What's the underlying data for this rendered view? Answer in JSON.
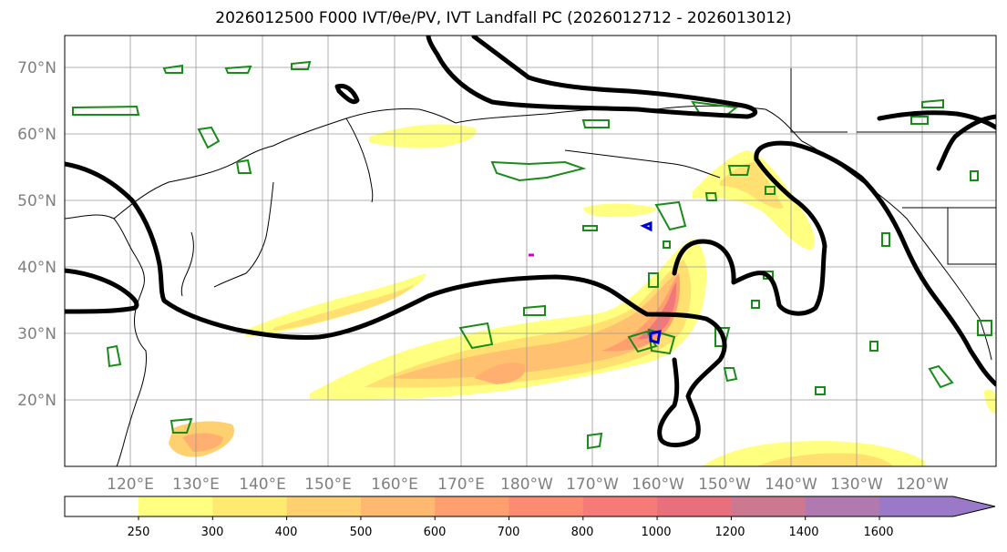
{
  "title": "2026012500 F000 IVT/θe/PV, IVT Landfall PC (2026012712 - 2026013012)",
  "map": {
    "lon_labels": [
      "120°E",
      "130°E",
      "140°E",
      "150°E",
      "160°E",
      "170°E",
      "180°W",
      "170°W",
      "160°W",
      "150°W",
      "140°W",
      "130°W",
      "120°W"
    ],
    "lat_labels": [
      "70°N",
      "60°N",
      "50°N",
      "40°N",
      "30°N",
      "20°N"
    ]
  },
  "colorbar": {
    "ticks": [
      "250",
      "300",
      "400",
      "500",
      "600",
      "700",
      "800",
      "1000",
      "1200",
      "1400",
      "1600"
    ],
    "colors": [
      "#ffff80",
      "#ffea70",
      "#ffd070",
      "#ffb870",
      "#ff9f70",
      "#ff8a72",
      "#f57a78",
      "#e8707d",
      "#cc7890",
      "#b07ab0",
      "#9a7ac8"
    ]
  }
}
